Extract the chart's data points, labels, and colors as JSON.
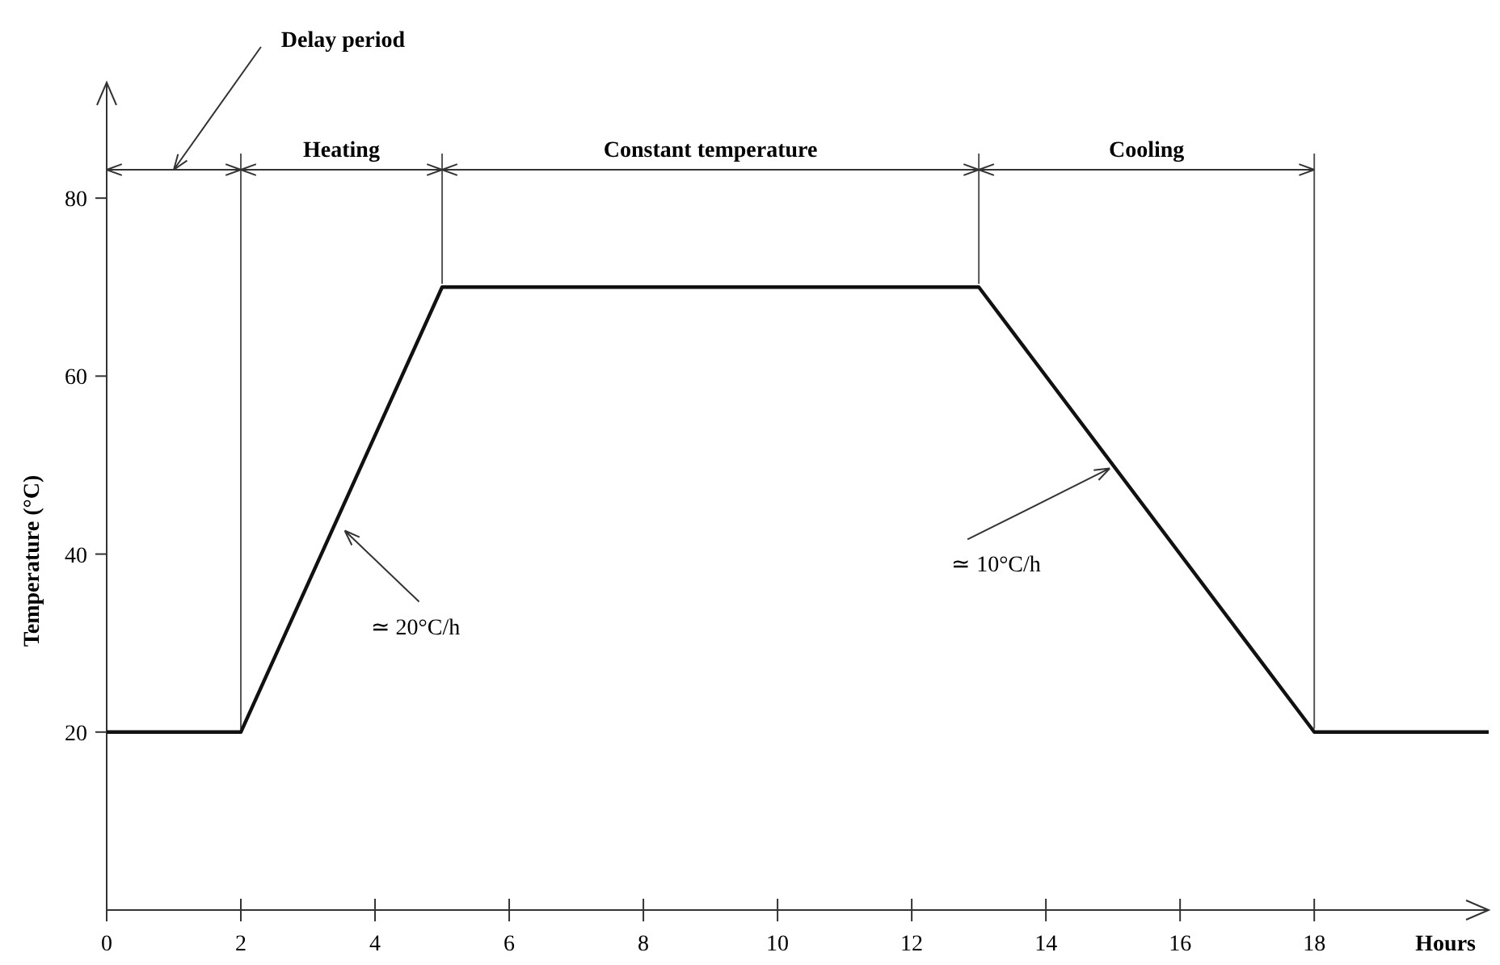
{
  "chart_data": {
    "type": "line",
    "xlabel": "Hours",
    "ylabel": "Temperature (°C)",
    "x": [
      0,
      2,
      5,
      13,
      18,
      20.6
    ],
    "series": [
      {
        "color": "#111111",
        "values": [
          20,
          20,
          70,
          70,
          20,
          20
        ]
      }
    ],
    "xlim": [
      0,
      20.6
    ],
    "ylim": [
      0,
      93
    ],
    "xticks": [
      0,
      2,
      4,
      6,
      8,
      10,
      12,
      14,
      16,
      18
    ],
    "yticks": [
      20,
      40,
      60,
      80
    ],
    "ref_lines": [
      {
        "axis": "x",
        "value": 2
      },
      {
        "axis": "x",
        "value": 5
      },
      {
        "axis": "x",
        "value": 13
      },
      {
        "axis": "x",
        "value": 18
      }
    ],
    "annotations": [
      "Delay period",
      "Heating",
      "Constant temperature",
      "Cooling",
      {
        "text": "≃ 20°C/h",
        "x": 3.5,
        "y": 43
      },
      {
        "text": "≃ 10°C/h",
        "x": 15,
        "y": 50
      }
    ],
    "grid": false,
    "marker": "none",
    "line_style": "solid"
  }
}
